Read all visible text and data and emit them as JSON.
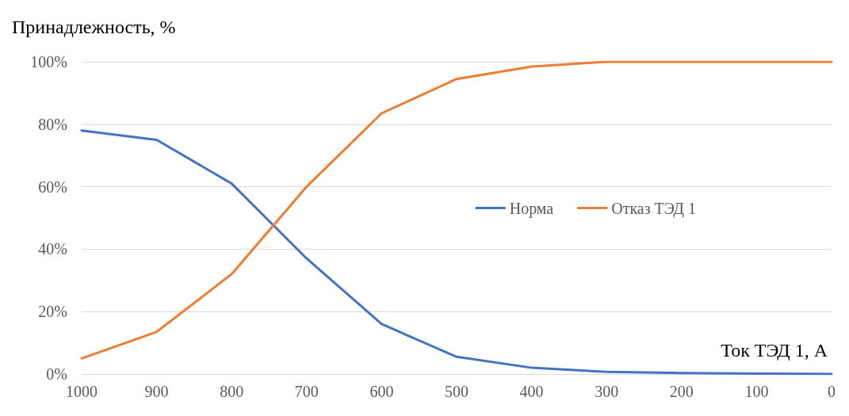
{
  "chart_data": {
    "type": "line",
    "ylabel": "Принадлежность, %",
    "xlabel": "Ток ТЭД 1, А",
    "categories": [
      "1000",
      "900",
      "800",
      "700",
      "600",
      "500",
      "400",
      "300",
      "200",
      "100",
      "0"
    ],
    "series": [
      {
        "name": "Норма",
        "color": "#4472c4",
        "values": [
          78,
          75,
          61,
          37,
          16,
          5.5,
          2,
          0.7,
          0.3,
          0.1,
          0
        ]
      },
      {
        "name": "Отказ ТЭД 1",
        "color": "#ed7d31",
        "values": [
          5,
          13.5,
          32,
          60,
          83.5,
          94.5,
          98.5,
          100,
          100,
          100,
          100
        ]
      }
    ],
    "ylim": [
      0,
      100
    ],
    "yticks": [
      {
        "value": 0,
        "label": "0%"
      },
      {
        "value": 20,
        "label": "20%"
      },
      {
        "value": 40,
        "label": "40%"
      },
      {
        "value": 60,
        "label": "60%"
      },
      {
        "value": 80,
        "label": "80%"
      },
      {
        "value": 100,
        "label": "100%"
      }
    ],
    "grid": "y",
    "legend": "right",
    "marker": "none",
    "line_style": "solid"
  }
}
